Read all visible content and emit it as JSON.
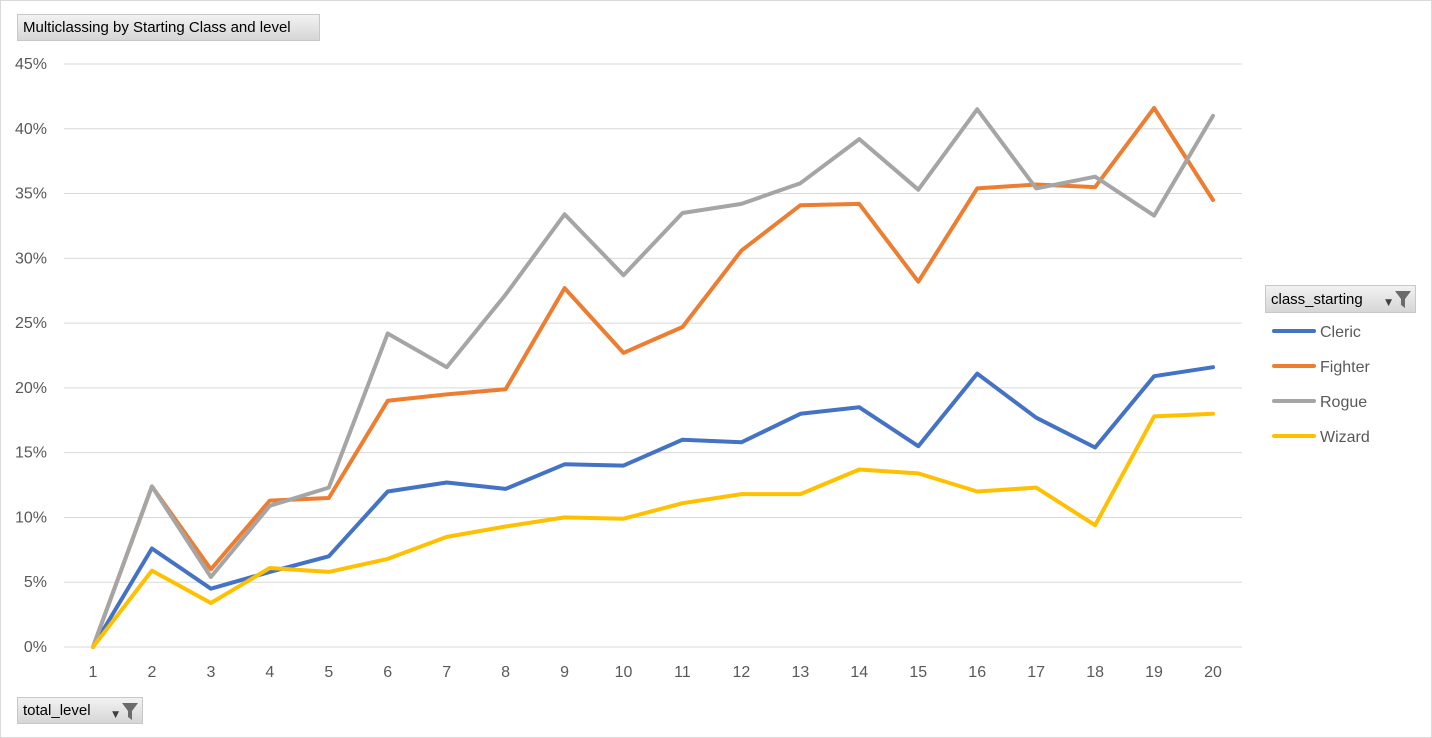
{
  "pivot": {
    "title_field": "Multiclassing by Starting Class and level",
    "legend_field": "class_starting",
    "axis_field": "total_level"
  },
  "icons": {
    "filter": "funnel-filter-icon",
    "dropdown": "dropdown-arrow-icon"
  },
  "chart_data": {
    "type": "line",
    "title": "Multiclassing by Starting Class and level",
    "xlabel": "",
    "ylabel": "",
    "categories": [
      "1",
      "2",
      "3",
      "4",
      "5",
      "6",
      "7",
      "8",
      "9",
      "10",
      "11",
      "12",
      "13",
      "14",
      "15",
      "16",
      "17",
      "18",
      "19",
      "20"
    ],
    "y_ticks": [
      "0%",
      "5%",
      "10%",
      "15%",
      "20%",
      "25%",
      "30%",
      "35%",
      "40%",
      "45%"
    ],
    "ylim": [
      0,
      45
    ],
    "grid": true,
    "legend_position": "right",
    "series": [
      {
        "name": "Cleric",
        "color": "#4472C4",
        "values": [
          0,
          7.6,
          4.5,
          5.8,
          7.0,
          12.0,
          12.7,
          12.2,
          14.1,
          14.0,
          16.0,
          15.8,
          18.0,
          18.5,
          15.5,
          21.1,
          17.7,
          15.4,
          20.9,
          21.6
        ]
      },
      {
        "name": "Fighter",
        "color": "#ED7D31",
        "values": [
          0,
          12.4,
          6.0,
          11.3,
          11.5,
          19.0,
          19.5,
          19.9,
          27.7,
          22.7,
          24.7,
          30.6,
          34.1,
          34.2,
          28.2,
          35.4,
          35.7,
          35.5,
          41.6,
          34.5
        ]
      },
      {
        "name": "Rogue",
        "color": "#A5A5A5",
        "values": [
          0,
          12.4,
          5.4,
          10.9,
          12.3,
          24.2,
          21.6,
          27.2,
          33.4,
          28.7,
          33.5,
          34.2,
          35.8,
          39.2,
          35.3,
          41.5,
          35.4,
          36.3,
          33.3,
          41.0
        ]
      },
      {
        "name": "Wizard",
        "color": "#FFC000",
        "values": [
          0,
          5.9,
          3.4,
          6.1,
          5.8,
          6.8,
          8.5,
          9.3,
          10.0,
          9.9,
          11.1,
          11.8,
          11.8,
          13.7,
          13.4,
          12.0,
          12.3,
          9.4,
          17.8,
          18.0
        ]
      }
    ]
  }
}
